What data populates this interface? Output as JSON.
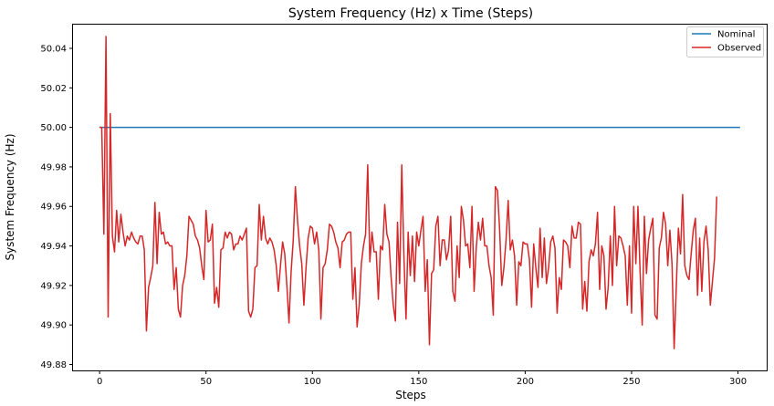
{
  "chart_data": {
    "type": "line",
    "title": "System Frequency (Hz) x Time (Steps)",
    "xlabel": "Steps",
    "ylabel": "System Frequency (Hz)",
    "xlim": [
      -12.5,
      313.5
    ],
    "ylim": [
      49.877,
      50.052
    ],
    "x_ticks": [
      0,
      50,
      100,
      150,
      200,
      250,
      300
    ],
    "y_ticks": [
      49.88,
      49.9,
      49.92,
      49.94,
      49.96,
      49.98,
      50.0,
      50.02,
      50.04
    ],
    "y_tick_labels": [
      "49.88",
      "49.90",
      "49.92",
      "49.94",
      "49.96",
      "49.98",
      "50.00",
      "50.02",
      "50.04"
    ],
    "grid": false,
    "legend_position": "top-right",
    "series": [
      {
        "name": "Nominal",
        "color": "#1f77b4",
        "x": [
          0,
          301
        ],
        "y": [
          50.0,
          50.0
        ]
      },
      {
        "name": "Observed",
        "color": "#d62728",
        "x_start": 0,
        "x_step": 1,
        "y": [
          50.0,
          50.0,
          49.946,
          50.046,
          49.904,
          50.007,
          49.945,
          49.937,
          49.958,
          49.942,
          49.956,
          49.947,
          49.94,
          49.945,
          49.943,
          49.947,
          49.944,
          49.942,
          49.941,
          49.945,
          49.945,
          49.938,
          49.897,
          49.919,
          49.924,
          49.93,
          49.962,
          49.931,
          49.957,
          49.946,
          49.947,
          49.941,
          49.942,
          49.94,
          49.94,
          49.918,
          49.929,
          49.908,
          49.904,
          49.92,
          49.925,
          49.935,
          49.955,
          49.953,
          49.951,
          49.945,
          49.943,
          49.939,
          49.93,
          49.923,
          49.958,
          49.942,
          49.943,
          49.951,
          49.911,
          49.919,
          49.909,
          49.938,
          49.939,
          49.947,
          49.944,
          49.947,
          49.946,
          49.938,
          49.941,
          49.941,
          49.945,
          49.943,
          49.946,
          49.949,
          49.907,
          49.904,
          49.908,
          49.929,
          49.93,
          49.961,
          49.943,
          49.955,
          49.944,
          49.941,
          49.944,
          49.942,
          49.938,
          49.93,
          49.917,
          49.93,
          49.942,
          49.936,
          49.92,
          49.901,
          49.927,
          49.943,
          49.97,
          49.953,
          49.94,
          49.931,
          49.91,
          49.929,
          49.944,
          49.95,
          49.949,
          49.941,
          49.947,
          49.938,
          49.903,
          49.929,
          49.931,
          49.938,
          49.951,
          49.95,
          49.947,
          49.942,
          49.939,
          49.929,
          49.942,
          49.943,
          49.946,
          49.947,
          49.947,
          49.913,
          49.929,
          49.899,
          49.91,
          49.931,
          49.94,
          49.946,
          49.981,
          49.932,
          49.947,
          49.937,
          49.937,
          49.913,
          49.94,
          49.938,
          49.961,
          49.946,
          49.942,
          49.924,
          49.91,
          49.902,
          49.952,
          49.921,
          49.981,
          49.935,
          49.903,
          49.947,
          49.925,
          49.945,
          49.922,
          49.947,
          49.94,
          49.948,
          49.955,
          49.917,
          49.933,
          49.89,
          49.926,
          49.928,
          49.95,
          49.955,
          49.93,
          49.943,
          49.943,
          49.933,
          49.938,
          49.955,
          49.917,
          49.912,
          49.94,
          49.924,
          49.96,
          49.953,
          49.94,
          49.941,
          49.929,
          49.96,
          49.917,
          49.939,
          49.952,
          49.943,
          49.954,
          49.94,
          49.94,
          49.93,
          49.924,
          49.905,
          49.97,
          49.968,
          49.948,
          49.92,
          49.929,
          49.943,
          49.963,
          49.938,
          49.943,
          49.935,
          49.91,
          49.932,
          49.93,
          49.942,
          49.941,
          49.941,
          49.933,
          49.909,
          49.941,
          49.929,
          49.919,
          49.949,
          49.924,
          49.944,
          49.921,
          49.929,
          49.942,
          49.945,
          49.939,
          49.906,
          49.924,
          49.918,
          49.943,
          49.942,
          49.94,
          49.929,
          49.95,
          49.944,
          49.944,
          49.952,
          49.951,
          49.908,
          49.922,
          49.907,
          49.932,
          49.938,
          49.935,
          49.941,
          49.957,
          49.918,
          49.94,
          49.935,
          49.908,
          49.919,
          49.945,
          49.92,
          49.96,
          49.93,
          49.945,
          49.944,
          49.94,
          49.935,
          49.91,
          49.94,
          49.906,
          49.96,
          49.931,
          49.96,
          49.927,
          49.9,
          49.955,
          49.926,
          49.943,
          49.949,
          49.954,
          49.905,
          49.903,
          49.939,
          49.944,
          49.957,
          49.951,
          49.93,
          49.948,
          49.931,
          49.888,
          49.919,
          49.949,
          49.936,
          49.966,
          49.93,
          49.925,
          49.923,
          49.936,
          49.948,
          49.954,
          49.915,
          49.944,
          49.917,
          49.942,
          49.95,
          49.938,
          49.91,
          49.922,
          49.934,
          49.965
        ]
      }
    ]
  }
}
